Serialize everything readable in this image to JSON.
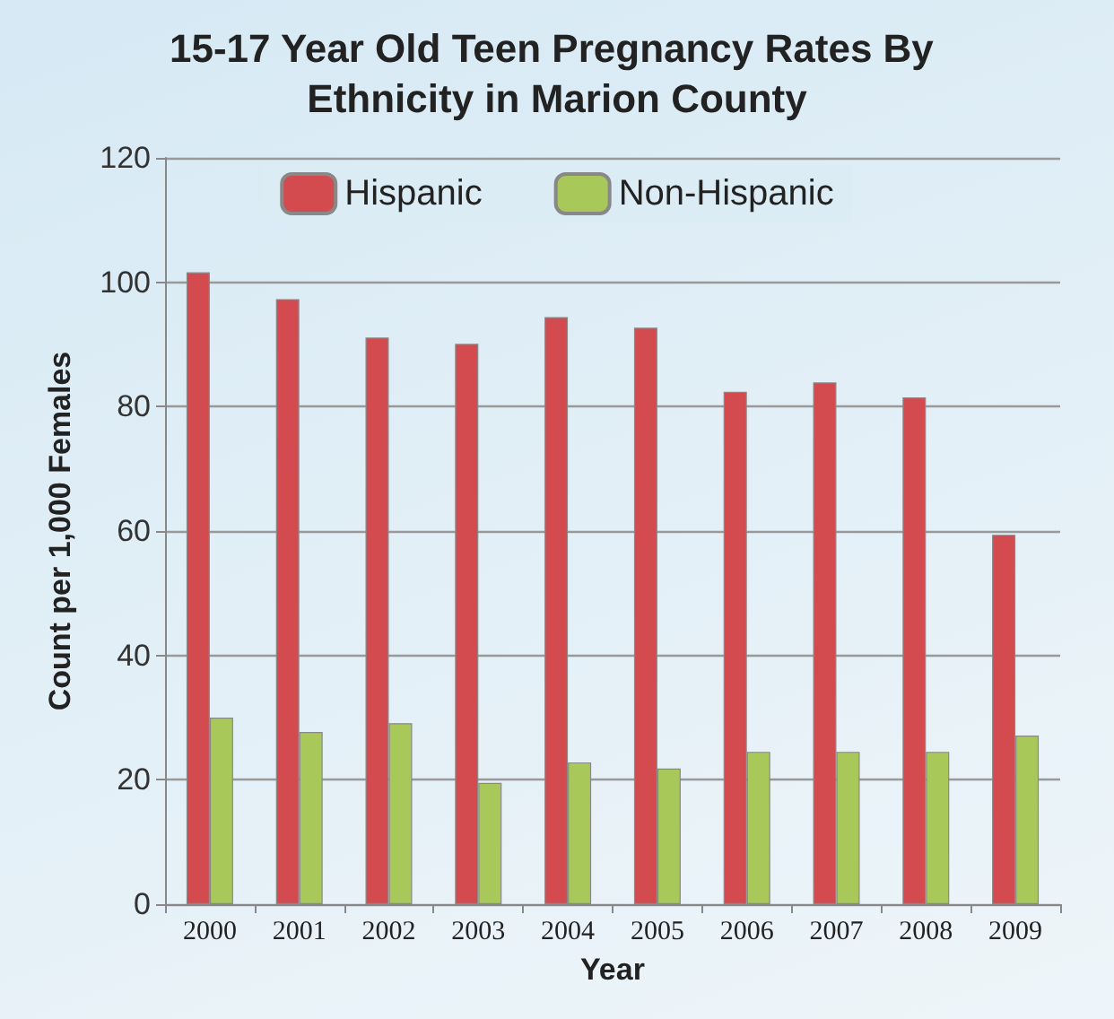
{
  "chart_data": {
    "type": "bar",
    "title": "15-17 Year Old Teen Pregnancy Rates By Ethnicity in Marion County",
    "xlabel": "Year",
    "ylabel": "Count per 1,000 Females",
    "categories": [
      "2000",
      "2001",
      "2002",
      "2003",
      "2004",
      "2005",
      "2006",
      "2007",
      "2008",
      "2009"
    ],
    "series": [
      {
        "name": "Hispanic",
        "color": "#d44b4f",
        "values": [
          101.6,
          97.3,
          91.1,
          90.1,
          94.4,
          92.7,
          82.4,
          83.9,
          81.5,
          59.4
        ]
      },
      {
        "name": "Non-Hispanic",
        "color": "#a8c85a",
        "values": [
          30.0,
          27.7,
          29.1,
          19.5,
          22.8,
          21.8,
          24.5,
          24.5,
          24.5,
          27.1
        ]
      }
    ],
    "ylim": [
      0,
      120
    ],
    "yticks": [
      0,
      20,
      40,
      60,
      80,
      100,
      120
    ],
    "grid": "y",
    "legend": "top"
  }
}
